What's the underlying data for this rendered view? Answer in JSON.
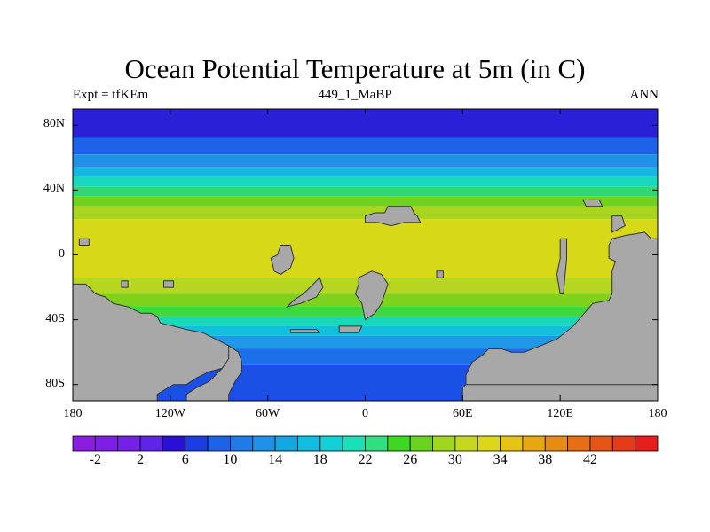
{
  "title": "Ocean Potential Temperature at 5m (in C)",
  "left_subtitle": "Expt = tfKEm",
  "center_subtitle": "449_1_MaBP",
  "right_subtitle": "ANN",
  "axes": {
    "lon_ticks": [
      -180,
      -120,
      -60,
      0,
      60,
      120,
      180
    ],
    "lon_labels": [
      "180",
      "120W",
      "60W",
      "0",
      "60E",
      "120E",
      "180"
    ],
    "lat_ticks": [
      80,
      40,
      0,
      -40,
      -80
    ],
    "lat_labels": [
      "80N",
      "40N",
      "0",
      "40S",
      "80S"
    ],
    "lon_range": [
      -180,
      180
    ],
    "lat_range": [
      -90,
      90
    ]
  },
  "colorbar": {
    "labels": [
      "-2",
      "2",
      "6",
      "10",
      "14",
      "18",
      "22",
      "26",
      "30",
      "34",
      "38",
      "42"
    ],
    "colors": [
      "#8a1ee0",
      "#7f1ee6",
      "#7320e8",
      "#5f24ea",
      "#2a10d6",
      "#1b3de6",
      "#1d63ea",
      "#1f7be8",
      "#1f92e8",
      "#14a8e2",
      "#12bde0",
      "#13d0d6",
      "#19e0b6",
      "#2fe080",
      "#3ed820",
      "#6bd21e",
      "#a0d61e",
      "#c4d820",
      "#dcd819",
      "#e6c414",
      "#e6a812",
      "#e68c12",
      "#e66e14",
      "#e65418",
      "#e63a1a",
      "#e61e1e"
    ]
  },
  "land_color": "#a8a8a8",
  "ocean_bands": [
    {
      "lat_from": 90,
      "lat_to": 72,
      "color": "#2a20d8"
    },
    {
      "lat_from": 72,
      "lat_to": 62,
      "color": "#1d63ea"
    },
    {
      "lat_from": 62,
      "lat_to": 54,
      "color": "#1f92e8"
    },
    {
      "lat_from": 54,
      "lat_to": 48,
      "color": "#14b8e0"
    },
    {
      "lat_from": 48,
      "lat_to": 42,
      "color": "#19d8c0"
    },
    {
      "lat_from": 42,
      "lat_to": 36,
      "color": "#2fd870"
    },
    {
      "lat_from": 36,
      "lat_to": 30,
      "color": "#6fd21e"
    },
    {
      "lat_from": 30,
      "lat_to": 22,
      "color": "#a8d620"
    },
    {
      "lat_from": 22,
      "lat_to": -14,
      "color": "#d6d818"
    },
    {
      "lat_from": -14,
      "lat_to": -24,
      "color": "#b6d620"
    },
    {
      "lat_from": -24,
      "lat_to": -32,
      "color": "#7ed21e"
    },
    {
      "lat_from": -32,
      "lat_to": -38,
      "color": "#3ed840"
    },
    {
      "lat_from": -38,
      "lat_to": -44,
      "color": "#19d8b8"
    },
    {
      "lat_from": -44,
      "lat_to": -50,
      "color": "#13c0dc"
    },
    {
      "lat_from": -50,
      "lat_to": -58,
      "color": "#1f98e8"
    },
    {
      "lat_from": -58,
      "lat_to": -68,
      "color": "#1d70ea"
    },
    {
      "lat_from": -68,
      "lat_to": -90,
      "color": "#1b50e6"
    }
  ],
  "land_polygons": [
    {
      "name": "south-america-landmass",
      "points": [
        [
          -180,
          -18
        ],
        [
          -172,
          -18
        ],
        [
          -166,
          -24
        ],
        [
          -160,
          -26
        ],
        [
          -155,
          -30
        ],
        [
          -146,
          -32
        ],
        [
          -138,
          -36
        ],
        [
          -132,
          -36
        ],
        [
          -128,
          -38
        ],
        [
          -126,
          -42
        ],
        [
          -118,
          -44
        ],
        [
          -110,
          -46
        ],
        [
          -100,
          -48
        ],
        [
          -92,
          -52
        ],
        [
          -88,
          -54
        ],
        [
          -84,
          -56
        ],
        [
          -82,
          -62
        ],
        [
          -84,
          -66
        ],
        [
          -88,
          -70
        ],
        [
          -96,
          -72
        ],
        [
          -104,
          -76
        ],
        [
          -110,
          -80
        ],
        [
          -118,
          -80
        ],
        [
          -128,
          -86
        ],
        [
          -128,
          -90
        ],
        [
          -180,
          -90
        ]
      ]
    },
    {
      "name": "antarctic-ice-edge",
      "points": [
        [
          -84,
          -56
        ],
        [
          -78,
          -60
        ],
        [
          -76,
          -66
        ],
        [
          -76,
          -72
        ],
        [
          -80,
          -78
        ],
        [
          -84,
          -86
        ],
        [
          -84,
          -90
        ],
        [
          -100,
          -90
        ],
        [
          -110,
          -90
        ],
        [
          -110,
          -86
        ],
        [
          -104,
          -82
        ],
        [
          -96,
          -78
        ],
        [
          -88,
          -70
        ],
        [
          -84,
          -64
        ]
      ]
    },
    {
      "name": "australia-asia-landmass",
      "points": [
        [
          180,
          10
        ],
        [
          176,
          10
        ],
        [
          172,
          14
        ],
        [
          160,
          12
        ],
        [
          152,
          10
        ],
        [
          150,
          6
        ],
        [
          150,
          -2
        ],
        [
          154,
          -4
        ],
        [
          152,
          -10
        ],
        [
          152,
          -24
        ],
        [
          150,
          -28
        ],
        [
          140,
          -30
        ],
        [
          128,
          -44
        ],
        [
          118,
          -52
        ],
        [
          108,
          -56
        ],
        [
          98,
          -60
        ],
        [
          90,
          -60
        ],
        [
          84,
          -58
        ],
        [
          76,
          -58
        ],
        [
          72,
          -62
        ],
        [
          66,
          -66
        ],
        [
          62,
          -74
        ],
        [
          62,
          -80
        ],
        [
          180,
          -90
        ]
      ]
    },
    {
      "name": "antarctic-margin",
      "points": [
        [
          62,
          -80
        ],
        [
          60,
          -82
        ],
        [
          60,
          -90
        ],
        [
          180,
          -90
        ],
        [
          180,
          -80
        ]
      ]
    },
    {
      "name": "north-africa-block",
      "points": [
        [
          0,
          24
        ],
        [
          6,
          26
        ],
        [
          12,
          26
        ],
        [
          14,
          30
        ],
        [
          20,
          30
        ],
        [
          28,
          30
        ],
        [
          30,
          26
        ],
        [
          32,
          24
        ],
        [
          34,
          20
        ],
        [
          24,
          20
        ],
        [
          16,
          18
        ],
        [
          8,
          20
        ],
        [
          0,
          20
        ]
      ]
    },
    {
      "name": "west-island",
      "points": [
        [
          -52,
          6
        ],
        [
          -46,
          6
        ],
        [
          -44,
          -2
        ],
        [
          -46,
          -8
        ],
        [
          -52,
          -12
        ],
        [
          -56,
          -10
        ],
        [
          -58,
          -2
        ],
        [
          -54,
          0
        ]
      ]
    },
    {
      "name": "central-island",
      "points": [
        [
          -4,
          -14
        ],
        [
          4,
          -10
        ],
        [
          10,
          -12
        ],
        [
          14,
          -18
        ],
        [
          10,
          -30
        ],
        [
          6,
          -36
        ],
        [
          0,
          -40
        ],
        [
          -2,
          -30
        ],
        [
          -6,
          -24
        ],
        [
          -4,
          -18
        ]
      ]
    },
    {
      "name": "southwest-arc",
      "points": [
        [
          -44,
          -28
        ],
        [
          -38,
          -24
        ],
        [
          -34,
          -20
        ],
        [
          -28,
          -14
        ],
        [
          -26,
          -20
        ],
        [
          -30,
          -26
        ],
        [
          -40,
          -30
        ],
        [
          -48,
          -32
        ]
      ]
    },
    {
      "name": "south-island-strip",
      "points": [
        [
          -46,
          -46
        ],
        [
          -30,
          -46
        ],
        [
          -28,
          -48
        ],
        [
          -46,
          -48
        ]
      ]
    },
    {
      "name": "south-island-small",
      "points": [
        [
          -16,
          -44
        ],
        [
          -2,
          -44
        ],
        [
          -4,
          -48
        ],
        [
          -16,
          -48
        ]
      ]
    },
    {
      "name": "india-sliver",
      "points": [
        [
          120,
          10
        ],
        [
          124,
          10
        ],
        [
          124,
          -2
        ],
        [
          122,
          -24
        ],
        [
          120,
          -24
        ],
        [
          118,
          -12
        ],
        [
          120,
          -2
        ]
      ]
    },
    {
      "name": "pacific-north-islet",
      "points": [
        [
          134,
          34
        ],
        [
          144,
          34
        ],
        [
          146,
          30
        ],
        [
          136,
          30
        ]
      ]
    },
    {
      "name": "pacific-east-islet",
      "points": [
        [
          152,
          24
        ],
        [
          158,
          24
        ],
        [
          160,
          18
        ],
        [
          152,
          14
        ]
      ]
    },
    {
      "name": "pacific-west-islet",
      "points": [
        [
          -176,
          10
        ],
        [
          -170,
          10
        ],
        [
          -170,
          6
        ],
        [
          -176,
          6
        ]
      ]
    },
    {
      "name": "small-islet-a",
      "points": [
        [
          -150,
          -16
        ],
        [
          -146,
          -16
        ],
        [
          -146,
          -20
        ],
        [
          -150,
          -20
        ]
      ]
    },
    {
      "name": "small-islet-b",
      "points": [
        [
          -124,
          -16
        ],
        [
          -118,
          -16
        ],
        [
          -118,
          -20
        ],
        [
          -124,
          -20
        ]
      ]
    },
    {
      "name": "small-islet-c",
      "points": [
        [
          44,
          -10
        ],
        [
          48,
          -10
        ],
        [
          48,
          -14
        ],
        [
          44,
          -14
        ]
      ]
    }
  ]
}
